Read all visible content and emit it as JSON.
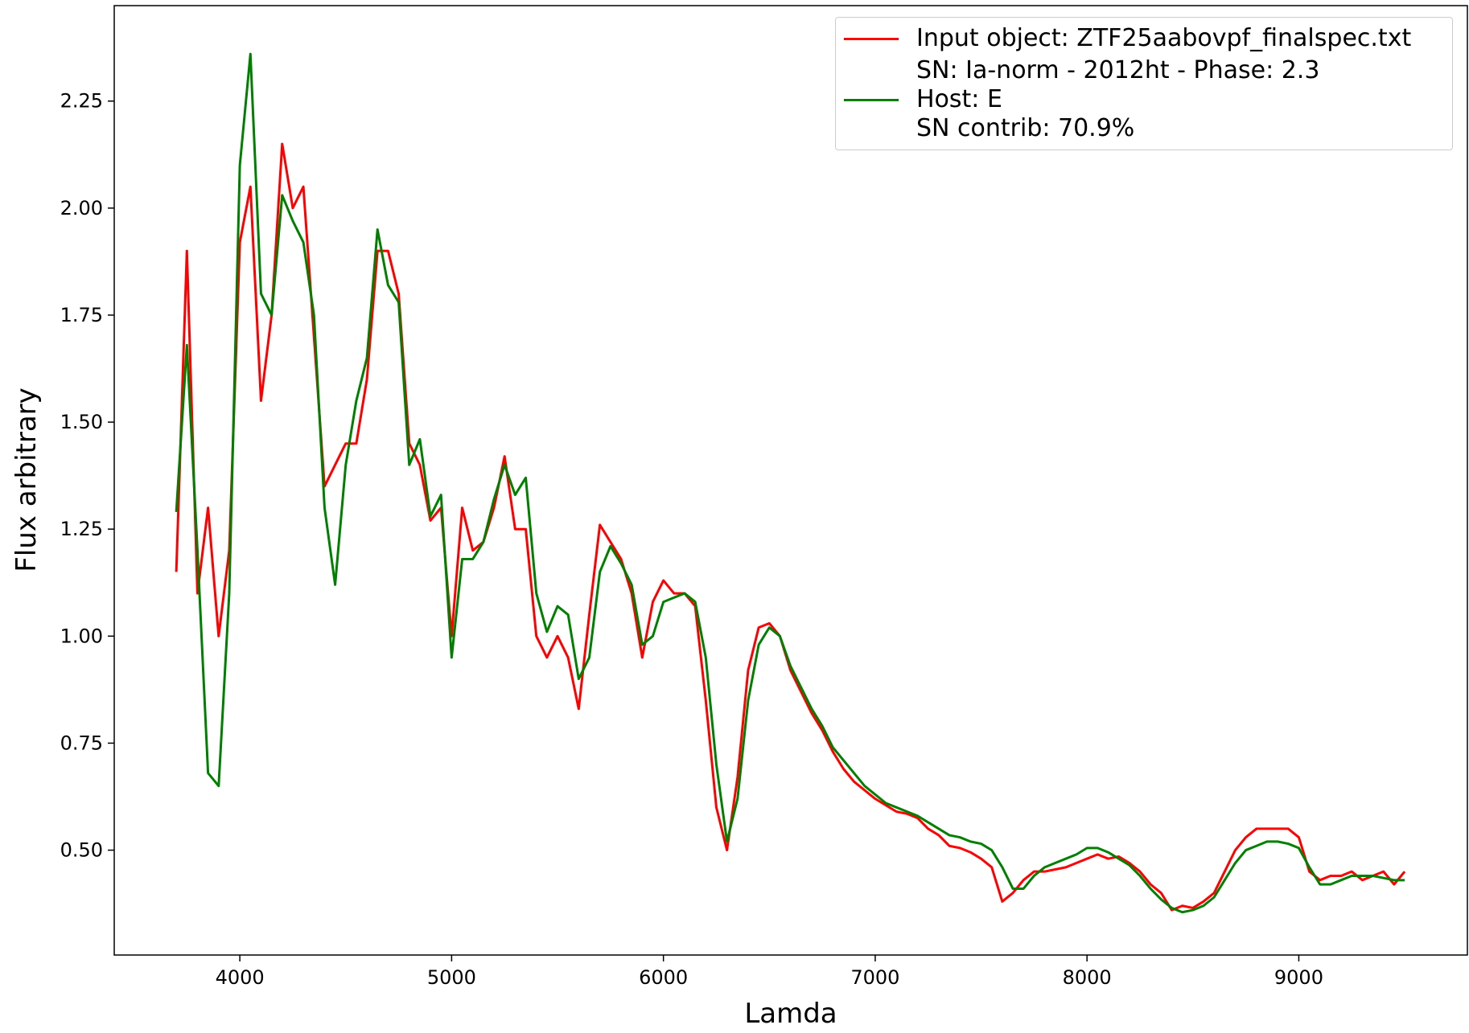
{
  "chart_data": {
    "type": "line",
    "xlabel": "Lamda",
    "ylabel": "Flux arbitrary",
    "xlim": [
      3407,
      9796
    ],
    "ylim": [
      0.255,
      2.473
    ],
    "xticks": [
      4000,
      5000,
      6000,
      7000,
      8000,
      9000
    ],
    "yticks": [
      {
        "value": 0.5,
        "label": "0.50"
      },
      0.75,
      {
        "value": 1,
        "label": "1.00"
      },
      1.25,
      {
        "value": 1.5,
        "label": "1.50"
      },
      1.75,
      {
        "value": 2,
        "label": "2.00"
      },
      2.25
    ],
    "grid": false,
    "legend": "upper right",
    "x": [
      3700,
      3750,
      3800,
      3850,
      3900,
      3950,
      4000,
      4050,
      4100,
      4150,
      4200,
      4250,
      4300,
      4350,
      4400,
      4450,
      4500,
      4550,
      4600,
      4650,
      4700,
      4750,
      4800,
      4850,
      4900,
      4950,
      5000,
      5050,
      5100,
      5150,
      5200,
      5250,
      5300,
      5350,
      5400,
      5450,
      5500,
      5550,
      5600,
      5650,
      5700,
      5750,
      5800,
      5850,
      5900,
      5950,
      6000,
      6050,
      6100,
      6150,
      6200,
      6250,
      6300,
      6350,
      6400,
      6450,
      6500,
      6550,
      6600,
      6650,
      6700,
      6750,
      6800,
      6850,
      6900,
      6950,
      7000,
      7050,
      7100,
      7150,
      7200,
      7250,
      7300,
      7350,
      7400,
      7450,
      7500,
      7550,
      7600,
      7650,
      7700,
      7750,
      7800,
      7850,
      7900,
      7950,
      8000,
      8050,
      8100,
      8150,
      8200,
      8250,
      8300,
      8350,
      8400,
      8450,
      8500,
      8550,
      8600,
      8650,
      8700,
      8750,
      8800,
      8850,
      8900,
      8950,
      9000,
      9050,
      9100,
      9150,
      9200,
      9250,
      9300,
      9350,
      9400,
      9450,
      9500
    ],
    "series": [
      {
        "name": "Input object: ZTF25aabovpf_finalspec.txt",
        "color": "#ff0000",
        "values": [
          1.15,
          1.9,
          1.1,
          1.3,
          1.0,
          1.2,
          1.92,
          2.05,
          1.55,
          1.75,
          2.15,
          2.0,
          2.05,
          1.7,
          1.35,
          1.4,
          1.45,
          1.45,
          1.6,
          1.9,
          1.9,
          1.8,
          1.45,
          1.4,
          1.27,
          1.3,
          1.0,
          1.3,
          1.2,
          1.22,
          1.3,
          1.42,
          1.25,
          1.25,
          1.0,
          0.95,
          1.0,
          0.95,
          0.83,
          1.05,
          1.26,
          1.22,
          1.18,
          1.1,
          0.95,
          1.08,
          1.13,
          1.1,
          1.1,
          1.07,
          0.85,
          0.6,
          0.5,
          0.67,
          0.92,
          1.02,
          1.03,
          1.0,
          0.92,
          0.87,
          0.82,
          0.78,
          0.73,
          0.69,
          0.66,
          0.64,
          0.62,
          0.605,
          0.59,
          0.585,
          0.575,
          0.55,
          0.535,
          0.51,
          0.505,
          0.495,
          0.48,
          0.46,
          0.38,
          0.4,
          0.43,
          0.45,
          0.45,
          0.455,
          0.46,
          0.47,
          0.48,
          0.49,
          0.48,
          0.485,
          0.47,
          0.45,
          0.42,
          0.4,
          0.36,
          0.37,
          0.365,
          0.38,
          0.4,
          0.45,
          0.5,
          0.53,
          0.55,
          0.55,
          0.55,
          0.55,
          0.53,
          0.45,
          0.43,
          0.44,
          0.44,
          0.45,
          0.43,
          0.44,
          0.45,
          0.42,
          0.45
        ]
      },
      {
        "name": "SN: Ia-norm - 2012ht - Phase:  2.3\nHost: E\nSN contrib:  70.9%",
        "color": "#008000",
        "values": [
          1.29,
          1.68,
          1.2,
          0.68,
          0.65,
          1.1,
          2.1,
          2.36,
          1.8,
          1.75,
          2.03,
          1.97,
          1.92,
          1.75,
          1.3,
          1.12,
          1.4,
          1.55,
          1.65,
          1.95,
          1.82,
          1.78,
          1.4,
          1.46,
          1.28,
          1.33,
          0.95,
          1.18,
          1.18,
          1.22,
          1.32,
          1.4,
          1.33,
          1.37,
          1.1,
          1.01,
          1.07,
          1.05,
          0.9,
          0.95,
          1.15,
          1.21,
          1.17,
          1.12,
          0.98,
          1.0,
          1.08,
          1.09,
          1.1,
          1.08,
          0.95,
          0.7,
          0.52,
          0.62,
          0.85,
          0.98,
          1.02,
          1.0,
          0.93,
          0.88,
          0.83,
          0.79,
          0.74,
          0.71,
          0.68,
          0.65,
          0.63,
          0.61,
          0.6,
          0.59,
          0.58,
          0.565,
          0.55,
          0.535,
          0.53,
          0.52,
          0.515,
          0.5,
          0.46,
          0.41,
          0.41,
          0.44,
          0.46,
          0.47,
          0.48,
          0.49,
          0.505,
          0.505,
          0.495,
          0.48,
          0.465,
          0.44,
          0.41,
          0.385,
          0.365,
          0.355,
          0.36,
          0.37,
          0.39,
          0.43,
          0.47,
          0.5,
          0.51,
          0.52,
          0.52,
          0.515,
          0.505,
          0.46,
          0.42,
          0.42,
          0.43,
          0.44,
          0.44,
          0.44,
          0.435,
          0.43,
          0.43
        ]
      }
    ]
  }
}
